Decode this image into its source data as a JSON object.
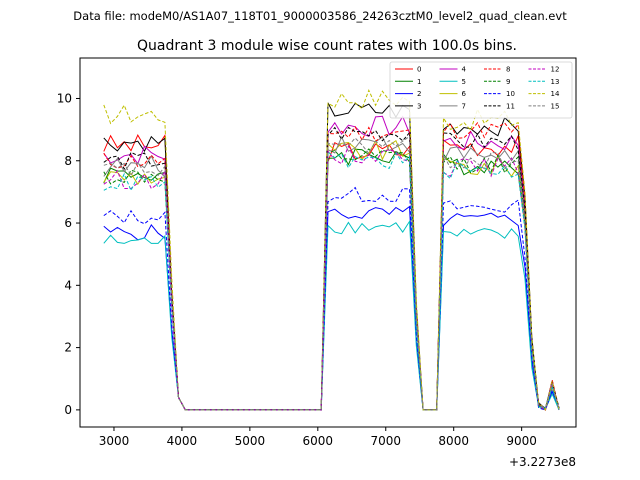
{
  "chart_data": {
    "type": "line",
    "suptitle": "Data file: modeM0/AS1A07_118T01_9000003586_24263cztM0_level2_quad_clean.evt",
    "title": "Quadrant 3 module wise count rates with 100.0s bins.",
    "xlabel": "",
    "ylabel": "",
    "x_offset_label": "+3.2273e8",
    "xlim": [
      2500,
      9800
    ],
    "ylim": [
      -0.55,
      11.3
    ],
    "xticks": [
      3000,
      4000,
      5000,
      6000,
      7000,
      8000,
      9000
    ],
    "yticks": [
      0,
      2,
      4,
      6,
      8,
      10
    ],
    "grid": false,
    "legend_position": "top-right",
    "legend_columns": 4,
    "x_segments": [
      [
        2850,
        3950
      ],
      [
        4000,
        6050
      ],
      [
        6100,
        7450
      ],
      [
        7500,
        7750
      ],
      [
        7800,
        9550
      ]
    ],
    "series": [
      {
        "name": "0",
        "color": "#ff0000",
        "dashed": false,
        "levels": [
          8.5,
          0,
          8.3,
          0,
          8.5
        ],
        "variation": 0.35
      },
      {
        "name": "1",
        "color": "#008000",
        "dashed": false,
        "levels": [
          7.6,
          0,
          8.2,
          0,
          7.9
        ],
        "variation": 0.35
      },
      {
        "name": "2",
        "color": "#0000ff",
        "dashed": false,
        "levels": [
          5.7,
          0,
          6.3,
          0,
          6.1
        ],
        "variation": 0.25
      },
      {
        "name": "3",
        "color": "#000000",
        "dashed": false,
        "levels": [
          8.6,
          0,
          9.6,
          0,
          9.1
        ],
        "variation": 0.3
      },
      {
        "name": "4",
        "color": "#c000c0",
        "dashed": false,
        "levels": [
          8.2,
          0,
          9.1,
          0,
          8.6
        ],
        "variation": 0.35
      },
      {
        "name": "5",
        "color": "#00bfbf",
        "dashed": false,
        "levels": [
          5.4,
          0,
          5.9,
          0,
          5.6
        ],
        "variation": 0.25
      },
      {
        "name": "6",
        "color": "#bfbf00",
        "dashed": false,
        "levels": [
          7.5,
          0,
          8.3,
          0,
          7.8
        ],
        "variation": 0.35
      },
      {
        "name": "7",
        "color": "#808080",
        "dashed": false,
        "levels": [
          7.8,
          0,
          8.6,
          0,
          8.2
        ],
        "variation": 0.35
      },
      {
        "name": "8",
        "color": "#ff0000",
        "dashed": true,
        "levels": [
          8.0,
          0,
          8.9,
          0,
          9.0
        ],
        "variation": 0.3
      },
      {
        "name": "9",
        "color": "#008000",
        "dashed": true,
        "levels": [
          7.5,
          0,
          8.1,
          0,
          7.9
        ],
        "variation": 0.3
      },
      {
        "name": "10",
        "color": "#0000ff",
        "dashed": true,
        "levels": [
          6.2,
          0,
          6.9,
          0,
          6.5
        ],
        "variation": 0.25
      },
      {
        "name": "11",
        "color": "#000000",
        "dashed": true,
        "levels": [
          8.0,
          0,
          8.9,
          0,
          8.6
        ],
        "variation": 0.3
      },
      {
        "name": "12",
        "color": "#c000c0",
        "dashed": true,
        "levels": [
          7.4,
          0,
          8.2,
          0,
          7.8
        ],
        "variation": 0.3
      },
      {
        "name": "13",
        "color": "#00bfbf",
        "dashed": true,
        "levels": [
          7.3,
          0,
          8.0,
          0,
          7.7
        ],
        "variation": 0.3
      },
      {
        "name": "14",
        "color": "#bfbf00",
        "dashed": true,
        "levels": [
          9.5,
          0,
          10.0,
          0,
          9.3
        ],
        "variation": 0.35
      },
      {
        "name": "15",
        "color": "#808080",
        "dashed": true,
        "levels": [
          7.7,
          0,
          8.5,
          0,
          8.0
        ],
        "variation": 0.3
      }
    ],
    "tail_points": [
      {
        "x": 9100,
        "factor": 0.25
      },
      {
        "x": 9200,
        "factor": 0.02
      },
      {
        "x": 9300,
        "factor": 0.0
      },
      {
        "x": 9400,
        "factor": 0.1
      },
      {
        "x": 9500,
        "factor": 0.0
      }
    ]
  }
}
